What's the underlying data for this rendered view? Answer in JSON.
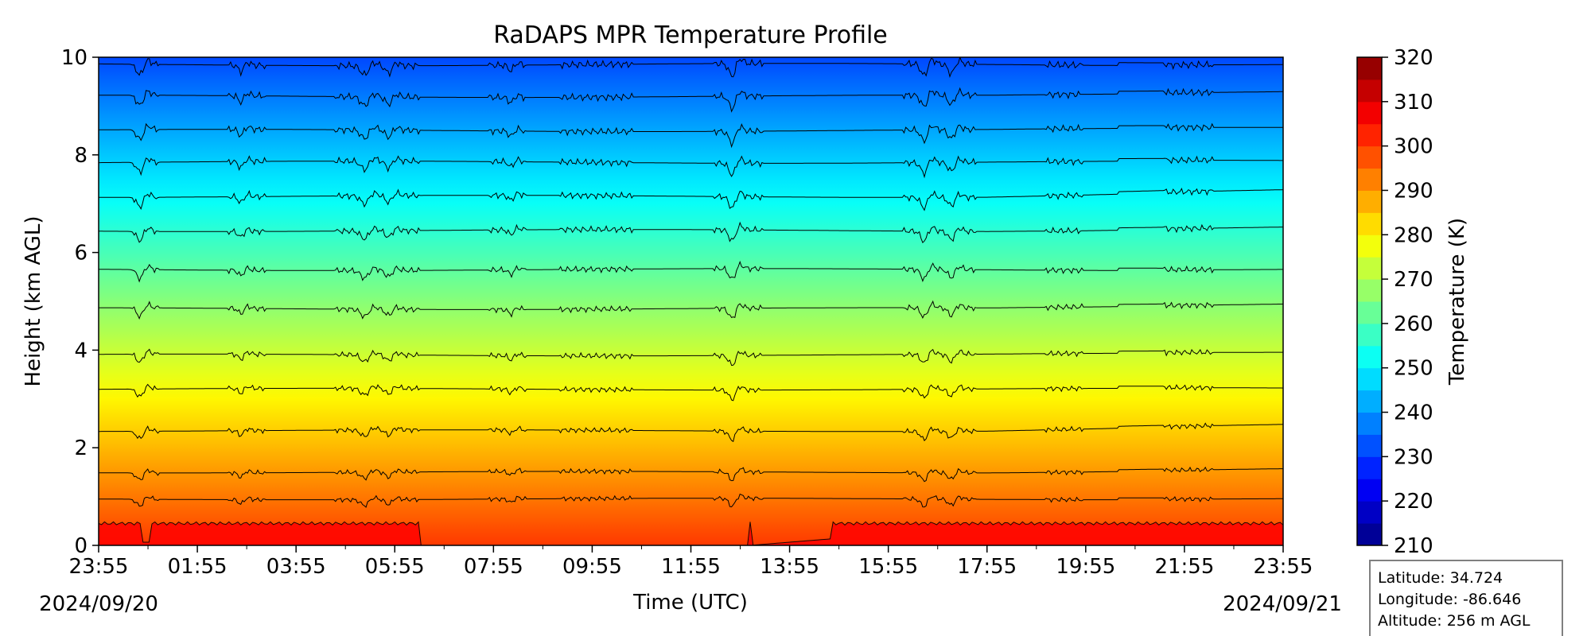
{
  "chart_data": {
    "type": "heatmap",
    "title": "RaDAPS MPR Temperature Profile",
    "xlabel": "Time (UTC)",
    "ylabel": "Height (km AGL)",
    "x_ticks": [
      "23:55",
      "01:55",
      "03:55",
      "05:55",
      "07:55",
      "09:55",
      "11:55",
      "13:55",
      "15:55",
      "17:55",
      "19:55",
      "21:55",
      "23:55"
    ],
    "x_start_date": "2024/09/20",
    "x_end_date": "2024/09/21",
    "x_range": [
      "2024/09/20 23:55",
      "2024/09/21 23:55"
    ],
    "ylim": [
      0,
      10
    ],
    "y_ticks": [
      "0",
      "2",
      "4",
      "6",
      "8",
      "10"
    ],
    "colorbar": {
      "label": "Temperature (K)",
      "range": [
        210,
        320
      ],
      "step": 5,
      "ticks": [
        "210",
        "220",
        "230",
        "240",
        "250",
        "260",
        "270",
        "280",
        "290",
        "300",
        "310",
        "320"
      ],
      "colormap": "jet"
    },
    "contour_heights_km": [
      0.95,
      1.5,
      2.35,
      3.2,
      3.9,
      4.85,
      5.65,
      6.45,
      7.15,
      7.85,
      8.5,
      9.2,
      9.85
    ],
    "surface_levels_km": [
      0.45,
      0.05
    ],
    "info_box": {
      "latitude": "Latitude: 34.724",
      "longitude": "Longitude: -86.646",
      "altitude": "Altitude: 256 m AGL"
    }
  }
}
